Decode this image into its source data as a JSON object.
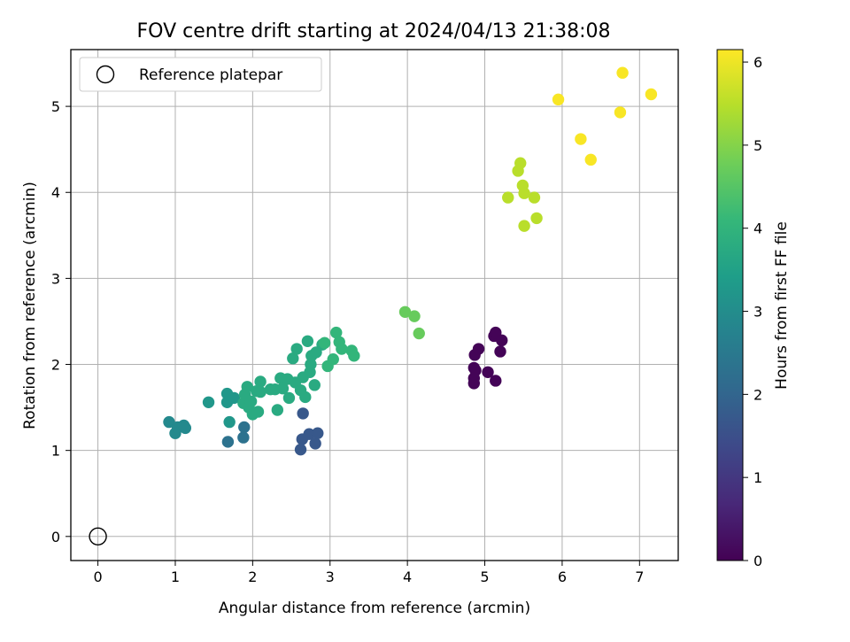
{
  "chart_data": {
    "type": "scatter",
    "title": "FOV centre drift starting at 2024/04/13 21:38:08",
    "xlabel": "Angular distance from reference (arcmin)",
    "ylabel": "Rotation from reference (arcmin)",
    "colorbar_label": "Hours from first FF file",
    "xlim": [
      -0.35,
      7.5
    ],
    "ylim": [
      -0.28,
      5.66
    ],
    "xticks": [
      "0",
      "1",
      "2",
      "3",
      "4",
      "5",
      "6",
      "7"
    ],
    "yticks": [
      "0",
      "1",
      "2",
      "3",
      "4",
      "5"
    ],
    "colorbar_ticks": [
      "0",
      "1",
      "2",
      "3",
      "4",
      "5",
      "6"
    ],
    "colorbar_range": [
      0,
      6.15
    ],
    "colormap": [
      "#440154",
      "#482878",
      "#3e4989",
      "#31688e",
      "#26828e",
      "#1f9e89",
      "#35b779",
      "#6ece58",
      "#b5de2b",
      "#fde725"
    ],
    "grid": true,
    "legend_position": "top-left",
    "reference": {
      "label": "Reference platepar",
      "x": 0,
      "y": 0
    },
    "series": [
      {
        "points": [
          [
            4.87,
            2.11,
            0.05
          ],
          [
            4.92,
            2.18,
            0.05
          ],
          [
            5.12,
            2.33,
            0.05
          ],
          [
            5.14,
            2.37,
            0.05
          ],
          [
            5.22,
            2.28,
            0.05
          ],
          [
            5.2,
            2.15,
            0.05
          ],
          [
            4.86,
            1.96,
            0.05
          ],
          [
            4.88,
            1.93,
            0.05
          ],
          [
            4.86,
            1.84,
            0.05
          ],
          [
            4.86,
            1.78,
            0.05
          ],
          [
            5.04,
            1.91,
            0.05
          ],
          [
            5.14,
            1.81,
            0.05
          ]
        ]
      },
      {
        "points": [
          [
            2.65,
            1.43,
            1.7
          ],
          [
            2.62,
            1.01,
            1.7
          ],
          [
            2.64,
            1.13,
            1.7
          ],
          [
            2.73,
            1.19,
            1.7
          ],
          [
            2.81,
            1.08,
            1.7
          ],
          [
            2.84,
            1.2,
            1.7
          ]
        ]
      },
      {
        "points": [
          [
            1.68,
            1.1,
            2.3
          ],
          [
            1.88,
            1.15,
            2.3
          ],
          [
            1.89,
            1.27,
            2.3
          ]
        ]
      },
      {
        "points": [
          [
            0.92,
            1.33,
            2.9
          ],
          [
            1.0,
            1.2,
            2.9
          ],
          [
            1.03,
            1.27,
            2.9
          ],
          [
            1.11,
            1.29,
            2.9
          ],
          [
            1.13,
            1.26,
            2.9
          ]
        ]
      },
      {
        "points": [
          [
            1.43,
            1.56,
            3.25
          ],
          [
            1.67,
            1.66,
            3.25
          ],
          [
            1.67,
            1.56,
            3.25
          ],
          [
            1.7,
            1.33,
            3.25
          ],
          [
            1.76,
            1.61,
            3.25
          ]
        ]
      },
      {
        "points": [
          [
            1.88,
            1.55,
            3.75
          ],
          [
            1.9,
            1.65,
            3.75
          ],
          [
            1.93,
            1.74,
            3.75
          ],
          [
            1.95,
            1.5,
            3.75
          ],
          [
            1.98,
            1.57,
            3.75
          ],
          [
            2.0,
            1.42,
            3.75
          ],
          [
            2.05,
            1.69,
            3.75
          ],
          [
            2.07,
            1.45,
            3.75
          ],
          [
            2.1,
            1.8,
            3.75
          ],
          [
            2.1,
            1.68,
            3.75
          ],
          [
            2.23,
            1.71,
            3.75
          ],
          [
            2.29,
            1.71,
            3.75
          ],
          [
            2.32,
            1.47,
            3.75
          ],
          [
            2.36,
            1.84,
            3.75
          ],
          [
            2.39,
            1.72,
            3.75
          ],
          [
            2.45,
            1.83,
            3.75
          ],
          [
            2.47,
            1.61,
            3.75
          ],
          [
            2.52,
            2.07,
            3.75
          ],
          [
            2.55,
            1.79,
            3.75
          ],
          [
            2.57,
            2.18,
            3.75
          ],
          [
            2.62,
            1.7,
            3.75
          ],
          [
            2.65,
            1.85,
            3.75
          ],
          [
            2.68,
            1.62,
            3.75
          ],
          [
            2.71,
            2.27,
            3.75
          ],
          [
            2.74,
            1.91,
            3.75
          ],
          [
            2.75,
            2.0,
            3.75
          ],
          [
            2.76,
            2.1,
            3.75
          ],
          [
            2.8,
            1.76,
            3.75
          ],
          [
            2.82,
            2.14,
            3.75
          ],
          [
            2.9,
            2.23,
            3.75
          ]
        ]
      },
      {
        "points": [
          [
            2.93,
            2.25,
            4.05
          ],
          [
            2.97,
            1.98,
            4.05
          ],
          [
            3.04,
            2.06,
            4.05
          ],
          [
            3.08,
            2.37,
            4.05
          ],
          [
            3.12,
            2.26,
            4.05
          ],
          [
            3.15,
            2.18,
            4.05
          ],
          [
            3.28,
            2.16,
            4.05
          ],
          [
            3.31,
            2.1,
            4.05
          ]
        ]
      },
      {
        "points": [
          [
            3.97,
            2.61,
            4.7
          ],
          [
            4.09,
            2.56,
            4.7
          ],
          [
            4.15,
            2.36,
            4.7
          ]
        ]
      },
      {
        "points": [
          [
            5.3,
            3.94,
            5.5
          ],
          [
            5.43,
            4.25,
            5.5
          ],
          [
            5.46,
            4.34,
            5.5
          ],
          [
            5.49,
            4.08,
            5.5
          ],
          [
            5.51,
            3.99,
            5.5
          ],
          [
            5.51,
            3.61,
            5.5
          ],
          [
            5.64,
            3.94,
            5.5
          ],
          [
            5.67,
            3.7,
            5.5
          ]
        ]
      },
      {
        "points": [
          [
            5.95,
            5.08,
            6.1
          ],
          [
            6.24,
            4.62,
            6.1
          ],
          [
            6.37,
            4.38,
            6.1
          ],
          [
            6.75,
            4.93,
            6.1
          ],
          [
            6.78,
            5.39,
            6.1
          ],
          [
            7.15,
            5.14,
            6.1
          ]
        ]
      }
    ]
  }
}
